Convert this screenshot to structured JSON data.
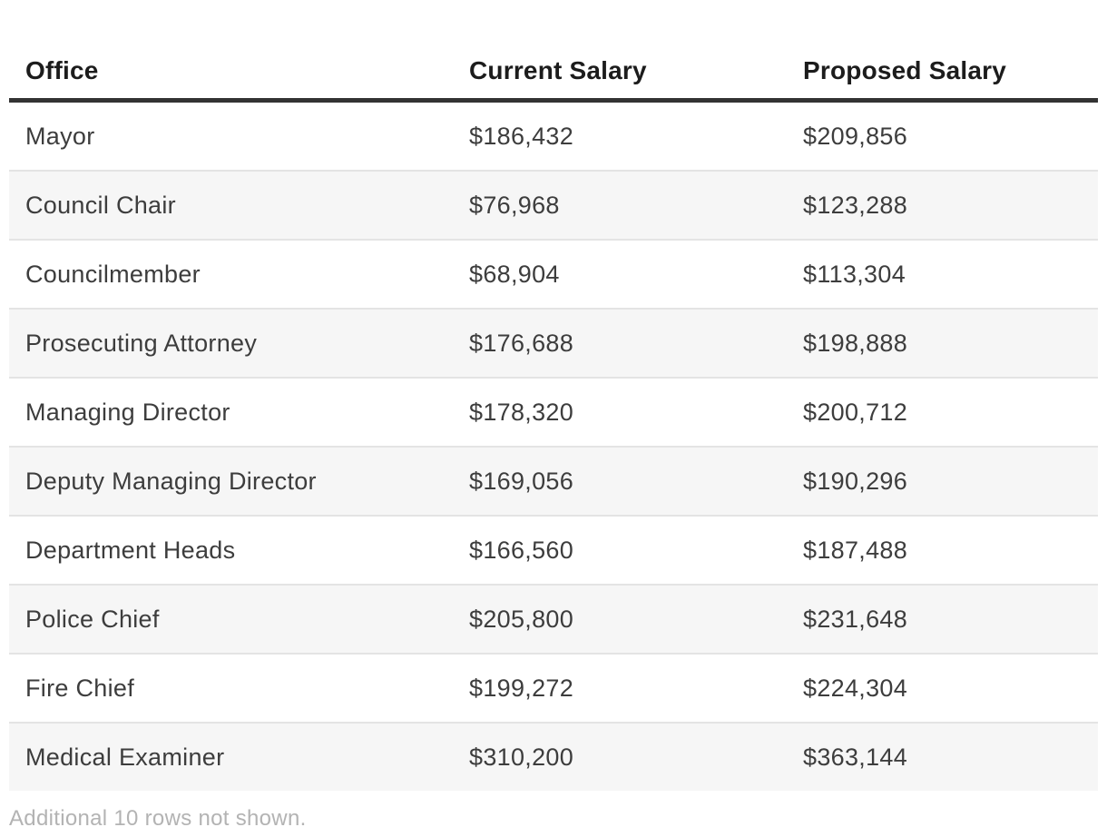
{
  "chart_data": {
    "type": "table",
    "columns": [
      "Office",
      "Current Salary",
      "Proposed Salary"
    ],
    "rows": [
      [
        "Mayor",
        "$186,432",
        "$209,856"
      ],
      [
        "Council Chair",
        "$76,968",
        "$123,288"
      ],
      [
        "Councilmember",
        "$68,904",
        "$113,304"
      ],
      [
        "Prosecuting Attorney",
        "$176,688",
        "$198,888"
      ],
      [
        "Managing Director",
        "$178,320",
        "$200,712"
      ],
      [
        "Deputy Managing Director",
        "$169,056",
        "$190,296"
      ],
      [
        "Department Heads",
        "$166,560",
        "$187,488"
      ],
      [
        "Police Chief",
        "$205,800",
        "$231,648"
      ],
      [
        "Fire Chief",
        "$199,272",
        "$224,304"
      ],
      [
        "Medical Examiner",
        "$310,200",
        "$363,144"
      ]
    ],
    "layout": {
      "zebra_striping": true,
      "column_alignment": [
        "left",
        "left",
        "left"
      ]
    }
  },
  "footnote": "Additional 10 rows not shown.",
  "colors": {
    "background": "#ffffff",
    "header_text": "#1c1c1c",
    "header_rule": "#333333",
    "body_text": "#3d3d3d",
    "row_stripe": "#f6f6f6",
    "row_divider": "#e4e4e4",
    "footnote_text": "#b3b3b3"
  }
}
